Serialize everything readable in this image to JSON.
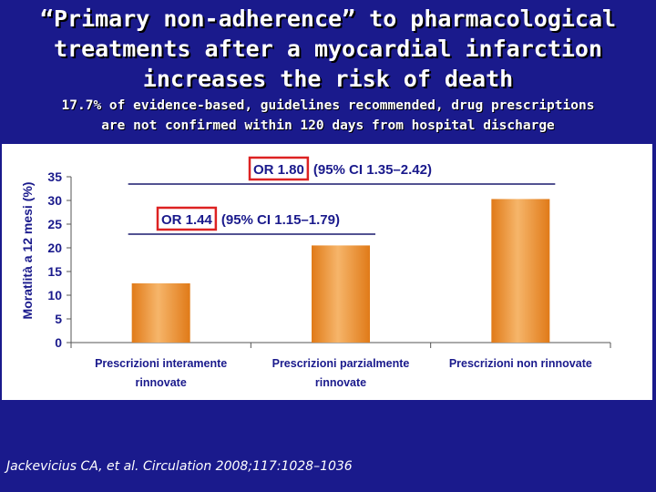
{
  "slide": {
    "title_lines": [
      "“Primary non-adherence” to pharmacological",
      "treatments after a myocardial infarction",
      "increases the risk of death"
    ],
    "subtitle_lines": [
      "17.7% of evidence-based, guidelines recommended, drug prescriptions",
      "are not confirmed within 120 days from hospital discharge"
    ],
    "citation": "Jackevicius CA, et al. Circulation 2008;117:1028–1036"
  },
  "chart_data": {
    "type": "bar",
    "categories": [
      [
        "Prescrizioni interamente",
        "rinnovate"
      ],
      [
        "Prescrizioni parzialmente",
        "rinnovate"
      ],
      [
        "Prescrizioni non rinnovate"
      ]
    ],
    "values": [
      12.5,
      20.5,
      30.3
    ],
    "ylabel": "Moratlità a 12 mesi (%)",
    "ylim": [
      0,
      35
    ],
    "yticks": [
      0,
      5,
      10,
      15,
      20,
      25,
      30,
      35
    ],
    "annotations": [
      {
        "or": "OR 1.80",
        "ci": "(95% CI 1.35–2.42)",
        "from_category": 0,
        "to_category": 2
      },
      {
        "or": "OR 1.44",
        "ci": "(95% CI 1.15–1.79)",
        "from_category": 0,
        "to_category": 1
      }
    ],
    "colors": {
      "bar": "#e07a18",
      "bar_light": "#f6b56a",
      "highlight_box": "#dd2222",
      "bracket": "#1a1a6e",
      "text": "#1a1a8c"
    }
  }
}
